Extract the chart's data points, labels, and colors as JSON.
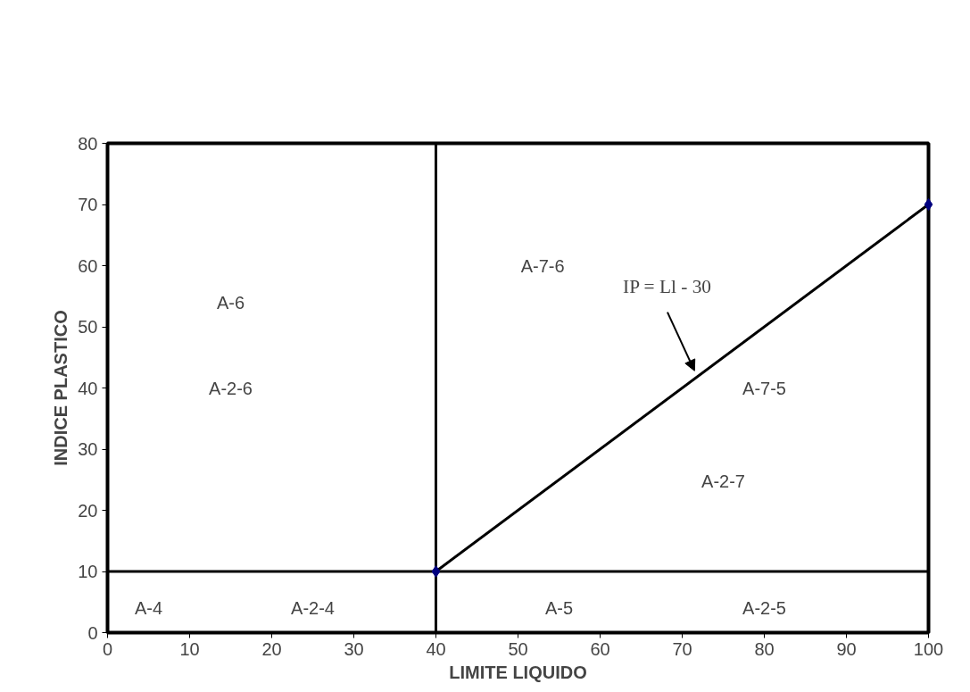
{
  "chart_data": {
    "type": "line",
    "xlabel": "LIMITE LIQUIDO",
    "ylabel": "INDICE PLASTICO",
    "xlim": [
      0,
      100
    ],
    "ylim": [
      0,
      80
    ],
    "xticks": [
      0,
      10,
      20,
      30,
      40,
      50,
      60,
      70,
      80,
      90,
      100
    ],
    "yticks": [
      0,
      10,
      20,
      30,
      40,
      50,
      60,
      70,
      80
    ],
    "grid": false,
    "marker": "diamond",
    "series": [
      {
        "color": "#000000",
        "x": [
          40,
          100
        ],
        "values": [
          10,
          70
        ]
      }
    ],
    "ref_lines": [
      {
        "axis": "x",
        "value": 40,
        "color": "#000000"
      },
      {
        "axis": "y",
        "value": 10,
        "color": "#000000"
      }
    ],
    "annotations": [
      "A-6",
      "A-2-6",
      "A-4",
      "A-2-4",
      "A-7-6",
      "A-7-5",
      "A-2-7",
      "A-5",
      "A-2-5",
      "IP = Ll - 30"
    ]
  }
}
